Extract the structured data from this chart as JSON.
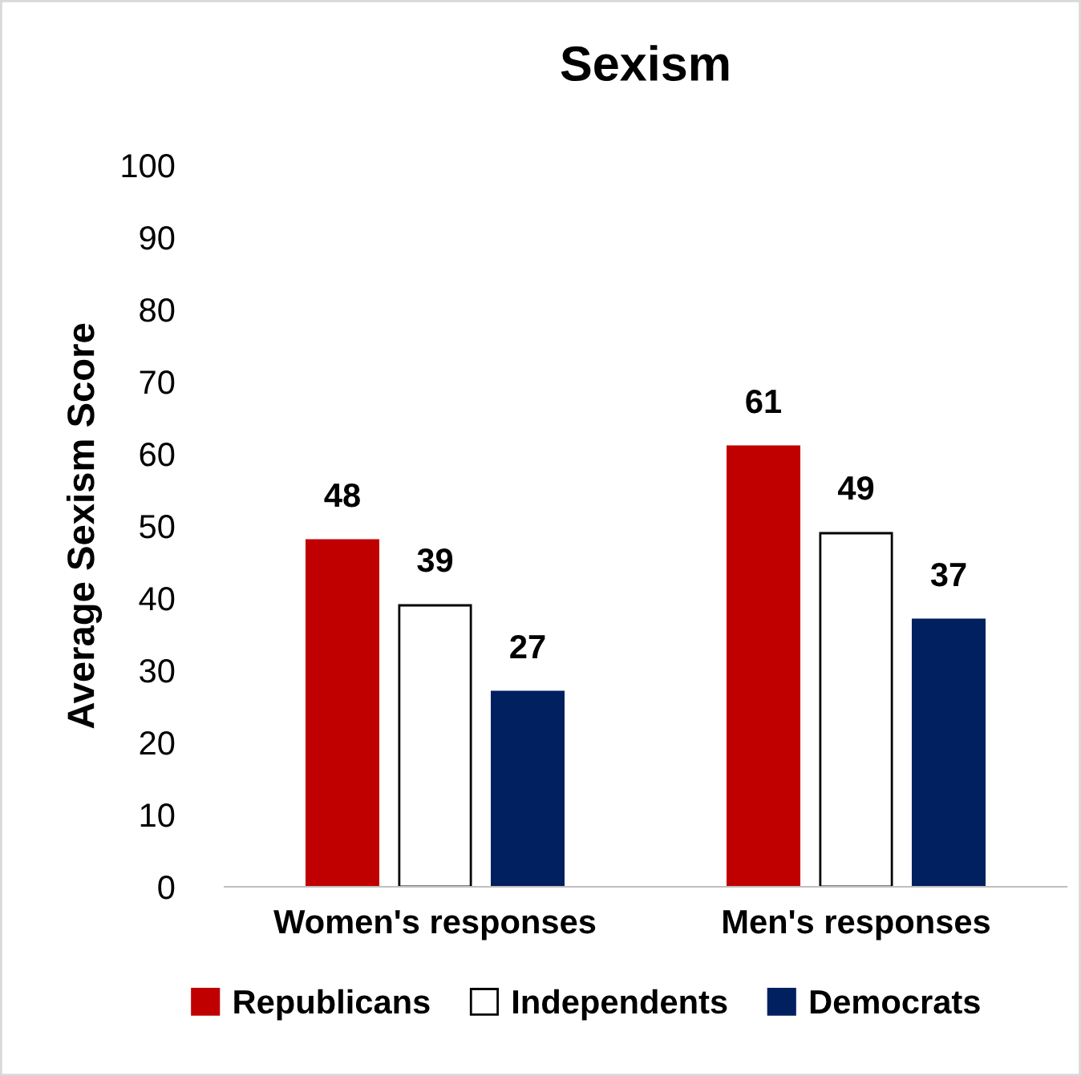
{
  "chart_data": {
    "type": "bar",
    "title": "Sexism",
    "ylabel": "Average Sexism Score",
    "categories": [
      "Women's responses",
      "Men's responses"
    ],
    "series": [
      {
        "name": "Republicans",
        "color": "#c00000",
        "values": [
          48,
          61
        ]
      },
      {
        "name": "Independents",
        "color": "#ffffff",
        "values": [
          39,
          49
        ]
      },
      {
        "name": "Democrats",
        "color": "#002060",
        "values": [
          27,
          37
        ]
      }
    ],
    "ylim": [
      0,
      100
    ],
    "yticks": [
      0,
      10,
      20,
      30,
      40,
      50,
      60,
      70,
      80,
      90,
      100
    ],
    "data_labels": true,
    "legend": "bottom",
    "grid": false
  }
}
